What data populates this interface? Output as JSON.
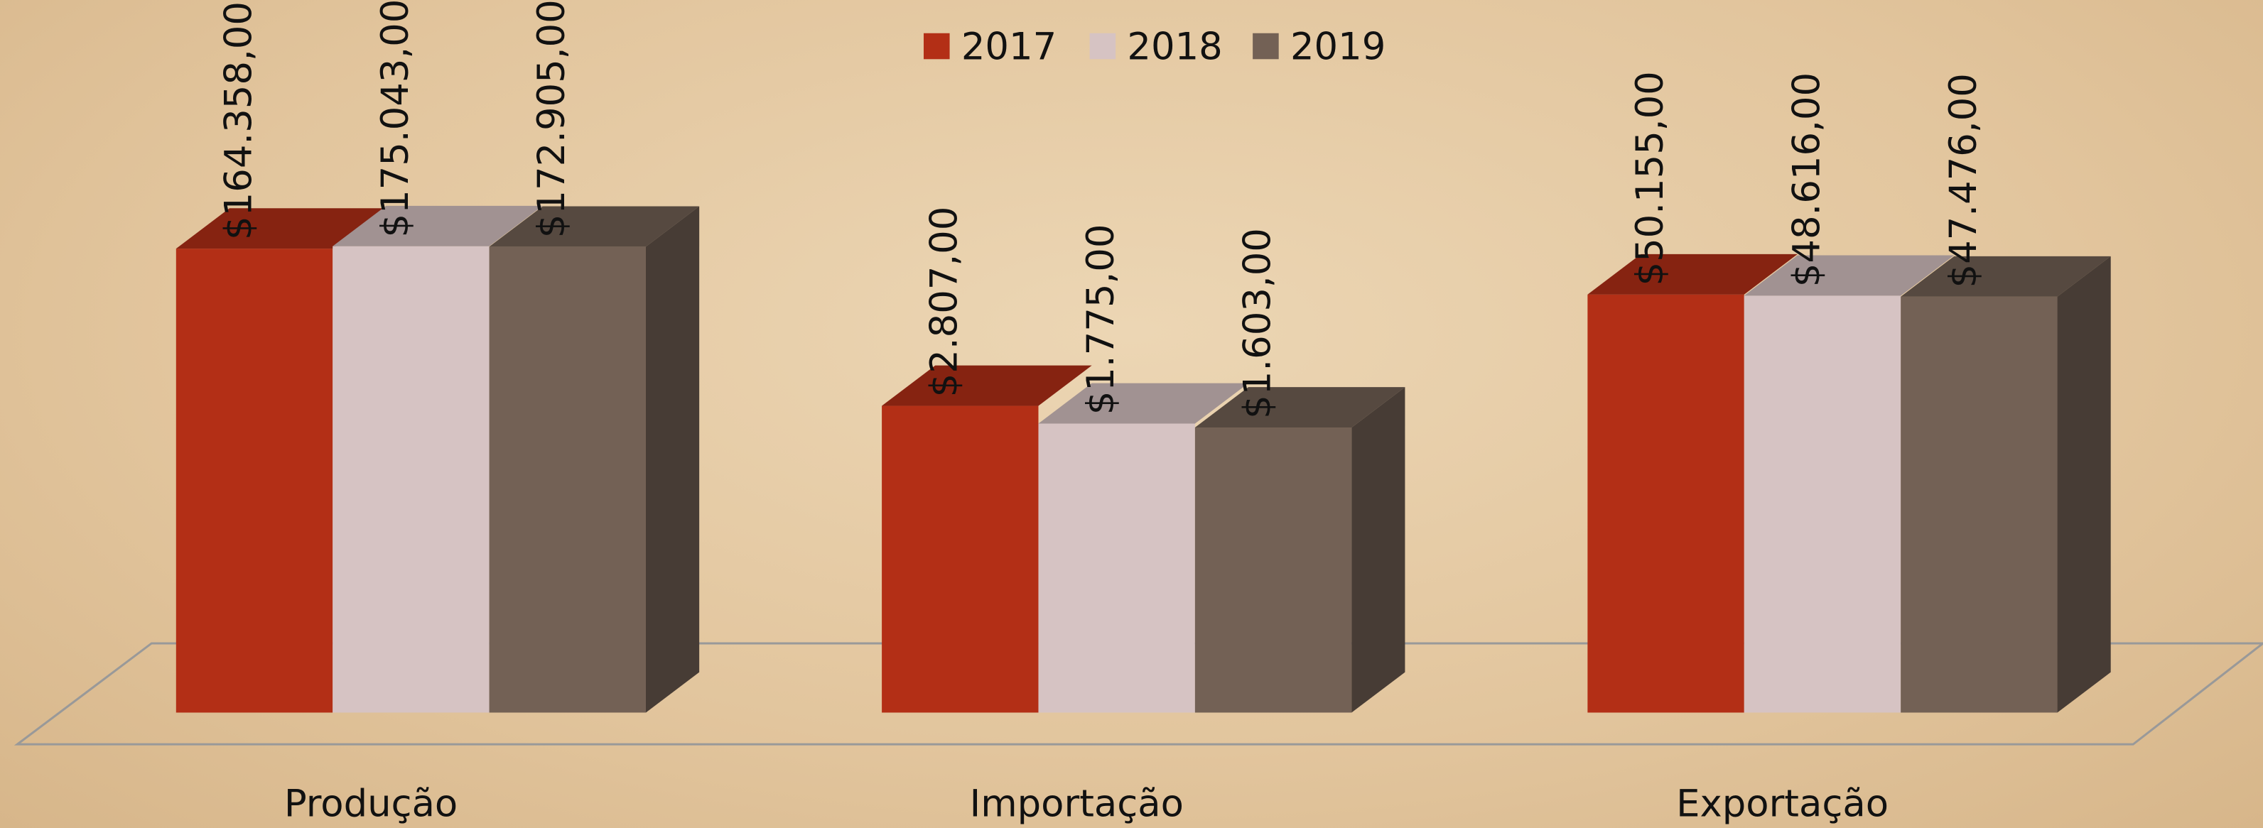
{
  "chart_data": {
    "type": "bar3d",
    "categories": [
      "Produção",
      "Importação",
      "Exportação"
    ],
    "series": [
      {
        "name": "2017",
        "color": "#b32f16",
        "values": [
          164358,
          2807,
          50155
        ],
        "value_labels": [
          "$164.358,00",
          "$2.807,00",
          "$50.155,00"
        ]
      },
      {
        "name": "2018",
        "color": "#d6c3c3",
        "values": [
          175043,
          1775,
          48616
        ],
        "value_labels": [
          "$175.043,00",
          "$1.775,00",
          "$48.616,00"
        ]
      },
      {
        "name": "2019",
        "color": "#736155",
        "values": [
          172905,
          1603,
          47476
        ],
        "value_labels": [
          "$172.905,00",
          "$1.603,00",
          "$47.476,00"
        ]
      }
    ],
    "log_scale": true,
    "ylim": [
      1,
      1000000
    ],
    "legend": "top"
  }
}
